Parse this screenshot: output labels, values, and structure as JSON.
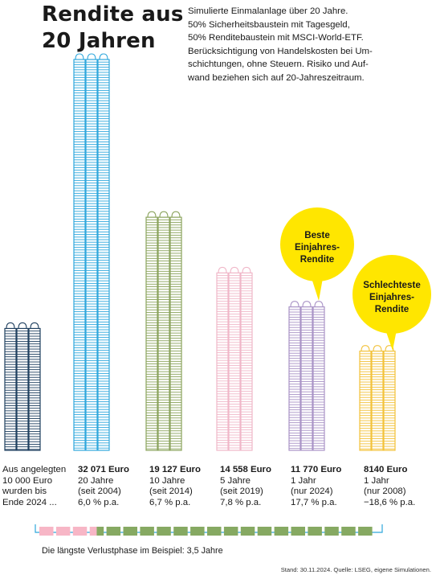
{
  "header": {
    "title_lines": [
      "Rendite aus",
      "20 Jahren"
    ],
    "intro_lines": [
      "Simulierte Einmalanlage über 20 Jahre.",
      "50% Sicherheitsbaustein mit Tagesgeld,",
      "50% Renditebaustein mit MSCI-World-ETF.",
      "Berücksichtigung von Handelskosten bei Um-",
      "schichtungen, ohne Steuern. Risiko und Auf-",
      "wand beziehen sich auf 20-Jahreszeitraum."
    ]
  },
  "chart_data": {
    "type": "bar",
    "categories": [
      "Aus angelegten 10 000 Euro wurden bis Ende 2024 ...",
      "20 Jahre (seit 2004)",
      "10 Jahre (seit 2014)",
      "5 Jahre (seit 2019)",
      "1 Jahr (nur 2024)",
      "1 Jahr (nur 2008)"
    ],
    "values": [
      10000,
      32071,
      19127,
      14558,
      11770,
      8140
    ],
    "unit": "Euro",
    "colors": [
      "#1f3f5f",
      "#2ea7dc",
      "#8aa35c",
      "#f0b7c8",
      "#a993c6",
      "#f2c23a"
    ],
    "labels": [
      {
        "lines": [
          "Aus angelegten",
          "10 000 Euro",
          "wurden bis",
          "Ende 2024 ..."
        ]
      },
      {
        "amount": "32 071 Euro",
        "lines": [
          "20 Jahre",
          "(seit 2004)",
          "6,0 % p.a."
        ]
      },
      {
        "amount": "19 127 Euro",
        "lines": [
          "10 Jahre",
          "(seit 2014)",
          "6,7 % p.a."
        ]
      },
      {
        "amount": "14 558 Euro",
        "lines": [
          "5 Jahre",
          "(seit 2019)",
          "7,8 % p.a."
        ]
      },
      {
        "amount": "11 770 Euro",
        "lines": [
          "1 Jahr",
          "(nur 2024)",
          "17,7 % p.a."
        ]
      },
      {
        "amount": "8140 Euro",
        "lines": [
          "1 Jahr",
          "(nur 2008)",
          "−18,6 % p.a."
        ]
      }
    ],
    "annotations": [
      {
        "for": 4,
        "lines": [
          "Beste",
          "Einjahres-",
          "Rendite"
        ]
      },
      {
        "for": 5,
        "lines": [
          "Schlechteste",
          "Einjahres-",
          "Rendite"
        ]
      }
    ],
    "bubble_color": "#ffe600",
    "ylim": [
      0,
      32071
    ]
  },
  "timeline": {
    "total_years": 20,
    "loss_years": 3.5,
    "loss_color": "#f7b6c6",
    "gain_color": "#86a962",
    "caption": "Die längste Verlustphase im Beispiel: 3,5 Jahre"
  },
  "source": "Stand: 30.11.2024. Quelle: LSEG, eigene Simulationen."
}
